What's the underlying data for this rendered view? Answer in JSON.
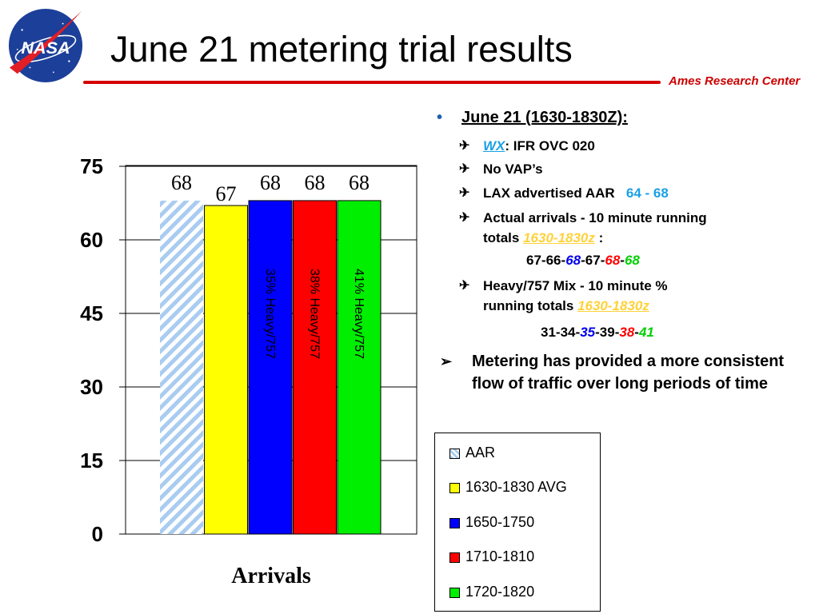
{
  "header": {
    "title": "June 21 metering trial results",
    "logo_text": "NASA",
    "center_label": "Ames Research Center"
  },
  "chart_data": {
    "type": "bar",
    "categories": [
      "AAR",
      "1630-1830 AVG",
      "1650-1750",
      "1710-1810",
      "1720-1820"
    ],
    "values": [
      68,
      67,
      68,
      68,
      68
    ],
    "data_labels": [
      "68",
      "67",
      "68",
      "68",
      "68"
    ],
    "bar_annotations": [
      "",
      "",
      "35% Heavy/757",
      "38% Heavy/757",
      "41% Heavy/757"
    ],
    "colors": [
      "#a9ccf0",
      "#ffff00",
      "#0000ff",
      "#ff0000",
      "#00ee00"
    ],
    "ylim": [
      0,
      75
    ],
    "yticks": [
      "0",
      "15",
      "30",
      "45",
      "60",
      "75"
    ],
    "xlabel": "Arrivals",
    "ylabel": "",
    "title": "",
    "grid": true,
    "legend": {
      "placement": "right",
      "entries": [
        "AAR",
        "1630-1830 AVG",
        "1650-1750",
        "1710-1810",
        "1720-1820"
      ]
    }
  },
  "notes": {
    "heading": "June 21 (1630-1830Z):",
    "wx_label": "WX",
    "wx_value": ": IFR OVC 020",
    "vap": "No VAP’s",
    "lax_label": "LAX advertised AAR",
    "lax_value": "64 - 68",
    "actual_line1": "Actual arrivals - 10 minute running",
    "actual_line2": "totals",
    "actual_range": "1630-1830z",
    "actual_colon": " :",
    "actual_seq": [
      "67",
      "66",
      "68",
      "67",
      "68",
      "68"
    ],
    "mix_line1": "Heavy/757 Mix - 10 minute %",
    "mix_line2": "running totals",
    "mix_range": "1630-1830z",
    "mix_seq": [
      "31",
      "34",
      "35",
      "39",
      "38",
      "41"
    ],
    "conclusion": "Metering has provided a more consistent flow of traffic over long periods of time"
  }
}
